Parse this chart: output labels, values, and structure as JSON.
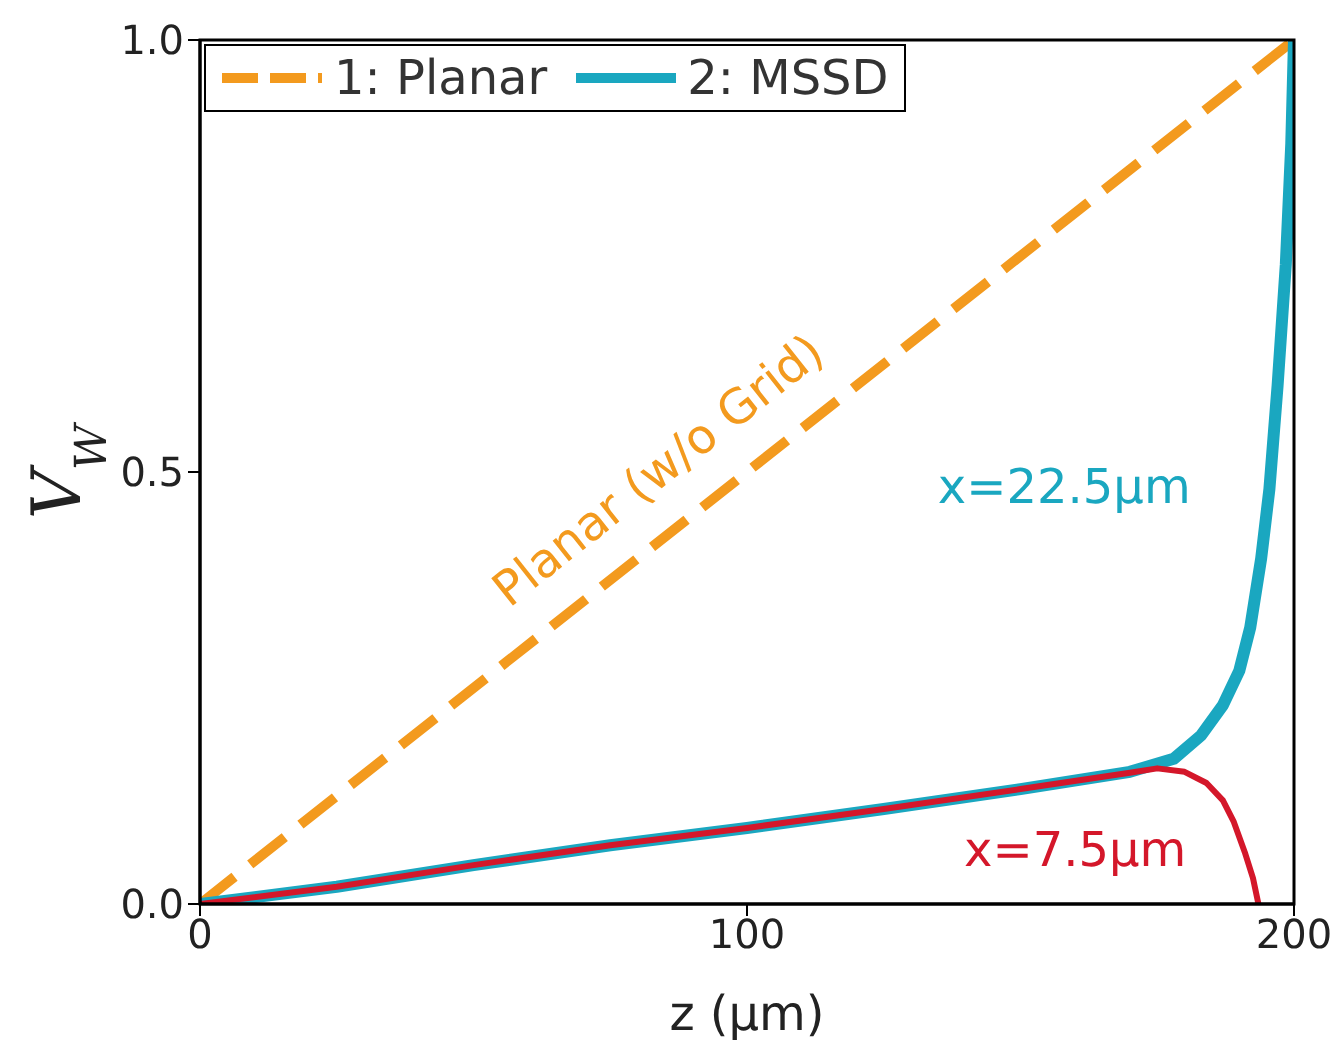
{
  "chart_data": {
    "type": "line",
    "xlabel": "z (μm)",
    "ylabel": "V$_{W}$",
    "xlim": [
      0,
      200
    ],
    "xticks": [
      0,
      100,
      200
    ],
    "ylim": [
      0,
      1
    ],
    "yticks": [
      {
        "value": 0,
        "label": "0.0"
      },
      {
        "value": 0.5,
        "label": "0.5"
      },
      {
        "value": 1,
        "label": "1.0"
      }
    ],
    "grid": false,
    "legend": "top left",
    "series": [
      {
        "name": "1: Planar",
        "color": "#f39a1e",
        "line_style": "dashed",
        "x": [
          0,
          200
        ],
        "values": [
          0,
          1
        ]
      },
      {
        "name": "2: MSSD",
        "color": "#1aa7c0",
        "line_style": "solid",
        "x": [
          0,
          25,
          50,
          75,
          100,
          125,
          150,
          170,
          178,
          183,
          187,
          190,
          192,
          194,
          195.5,
          197,
          198.5,
          199.5,
          200
        ],
        "values": [
          0,
          0.02,
          0.045,
          0.068,
          0.088,
          0.11,
          0.133,
          0.153,
          0.168,
          0.195,
          0.23,
          0.27,
          0.32,
          0.4,
          0.48,
          0.6,
          0.74,
          0.88,
          1
        ]
      },
      {
        "color": "#d4172a",
        "line_style": "solid",
        "x": [
          0,
          25,
          50,
          75,
          100,
          125,
          150,
          170,
          175,
          180,
          184,
          187,
          189,
          191,
          192.5,
          193.5
        ],
        "values": [
          0,
          0.02,
          0.045,
          0.068,
          0.088,
          0.11,
          0.133,
          0.152,
          0.157,
          0.153,
          0.14,
          0.12,
          0.095,
          0.06,
          0.03,
          0
        ]
      }
    ],
    "annotations": [
      "Planar (w/o Grid)",
      "x=22.5μm",
      "x=7.5μm"
    ]
  }
}
